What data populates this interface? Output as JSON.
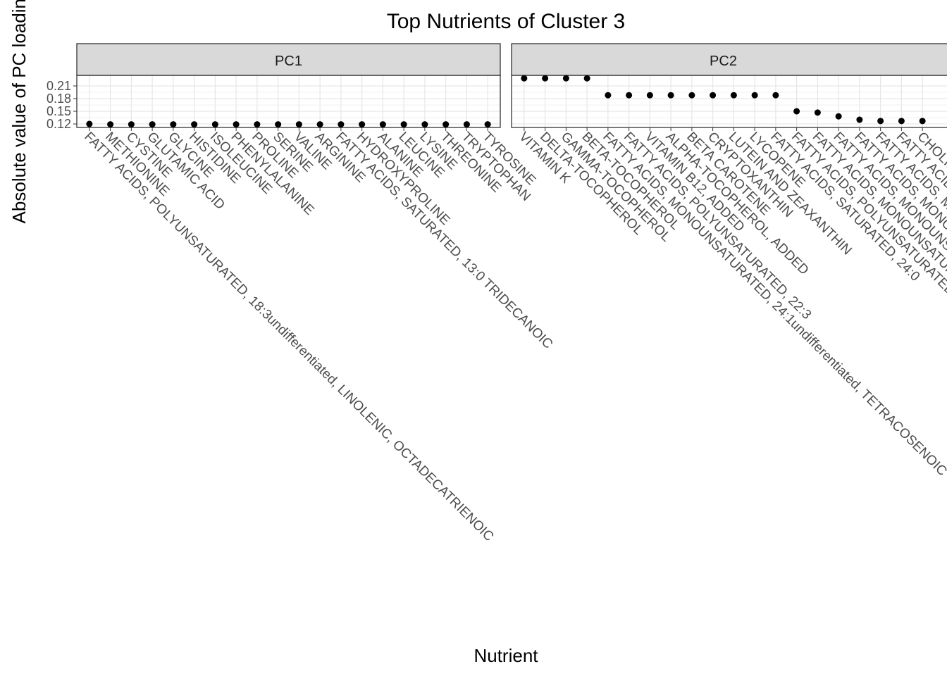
{
  "chart_data": {
    "type": "dot",
    "title": "Top Nutrients of Cluster 3",
    "x_label": "Nutrient",
    "y_label": "Absolute value of PC loadings",
    "ylim": [
      0.1117,
      0.235
    ],
    "yticks": [
      0.12,
      0.15,
      0.18,
      0.21
    ],
    "grid": true,
    "color": "#000000",
    "facets": [
      {
        "strip": "PC1",
        "categories": [
          "FATTY ACIDS, POLYUNSATURATED, 18:3undifferentiated, LINOLENIC, OCTADECATRIENOIC",
          "METHIONINE",
          "CYSTINE",
          "GLUTAMIC ACID",
          "GLYCINE",
          "HISTIDINE",
          "ISOLEUCINE",
          "PHENYLALANINE",
          "PROLINE",
          "SERINE",
          "VALINE",
          "ARGININE",
          "FATTY ACIDS, SATURATED, 13:0 TRIDECANOIC",
          "HYDROXYPROLINE",
          "ALANINE",
          "LEUCINE",
          "LYSINE",
          "THREONINE",
          "TRYPTOPHAN",
          "TYROSINE"
        ],
        "values": [
          0.12,
          0.119,
          0.119,
          0.119,
          0.119,
          0.119,
          0.119,
          0.119,
          0.119,
          0.119,
          0.119,
          0.119,
          0.119,
          0.119,
          0.119,
          0.119,
          0.119,
          0.119,
          0.119,
          0.119
        ]
      },
      {
        "strip": "PC2",
        "categories": [
          "VITAMIN K",
          "DELTA-TOCOPHEROL",
          "GAMMA-TOCOPHEROL",
          "BETA-TOCOPHEROL",
          "FATTY ACIDS, MONOUNSATURATED, 24:1undifferentiated, TETRACOSENOIC",
          "FATTY ACIDS, POLYUNSATURATED, 22:3",
          "VITAMIN B12, ADDED",
          "ALPHA-TOCOPHEROL, ADDED",
          "BETA CAROTENE",
          "CRYPTOXANTHIN",
          "LUTEIN AND ZEAXANTHIN",
          "LYCOPENE",
          "FATTY ACIDS, SATURATED, 24:0",
          "FATTY ACIDS, POLYUNSATURATED",
          "FATTY ACIDS, MONOUNSATURATED",
          "FATTY ACIDS, MONOUNSATURATED",
          "FATTY ACIDS, MONOUNSATURATED",
          "FATTY ACIDS, MONOUNSATURATED",
          "FATTY ACIDS",
          "CHOLINE"
        ],
        "values": [
          0.228,
          0.228,
          0.228,
          0.228,
          0.188,
          0.188,
          0.188,
          0.188,
          0.188,
          0.188,
          0.188,
          0.188,
          0.188,
          0.15,
          0.147,
          0.138,
          0.13,
          0.127,
          0.127,
          0.127
        ]
      }
    ]
  }
}
